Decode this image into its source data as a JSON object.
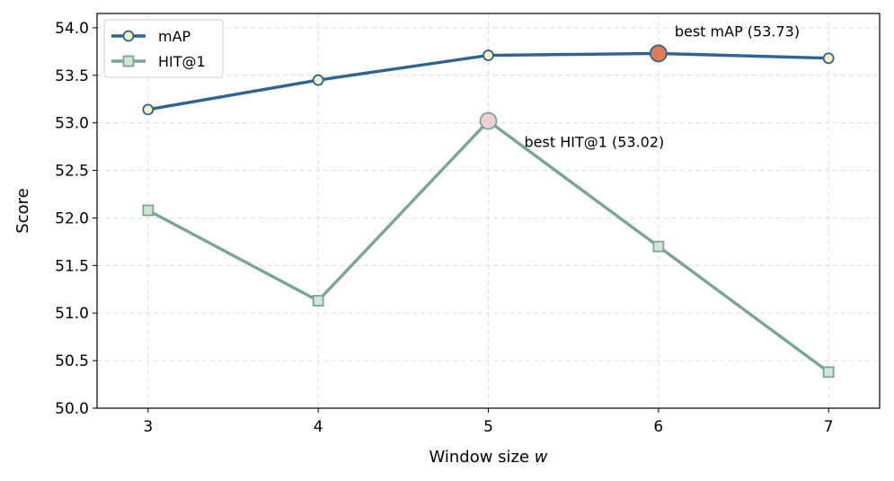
{
  "chart_data": {
    "type": "line",
    "xlabel": "Window size",
    "xlabel_var": "w",
    "ylabel": "Score",
    "x": [
      3,
      4,
      5,
      6,
      7
    ],
    "xlim": [
      2.7,
      7.3
    ],
    "ylim": [
      50.0,
      54.15
    ],
    "yticks": [
      "50.0",
      "50.5",
      "51.0",
      "51.5",
      "52.0",
      "52.5",
      "53.0",
      "53.5",
      "54.0"
    ],
    "xticks": [
      "3",
      "4",
      "5",
      "6",
      "7"
    ],
    "grid": true,
    "legend_position": "top-left",
    "series": [
      {
        "name": "mAP",
        "values": [
          53.14,
          53.45,
          53.71,
          53.73,
          53.68
        ],
        "color": "#2f6490",
        "marker": "circle",
        "marker_fill": "#f4f0c8"
      },
      {
        "name": "HIT@1",
        "values": [
          52.08,
          51.13,
          53.02,
          51.7,
          50.38
        ],
        "color": "#7aa594",
        "marker": "square",
        "marker_fill": "#d3e6d6"
      }
    ],
    "highlights": [
      {
        "series": "mAP",
        "x": 6,
        "value": 53.73,
        "color": "#e07b54",
        "label": "best mAP (53.73)"
      },
      {
        "series": "HIT@1",
        "x": 5,
        "value": 53.02,
        "color": "#ecd0d4",
        "label": "best HIT@1 (53.02)"
      }
    ]
  }
}
